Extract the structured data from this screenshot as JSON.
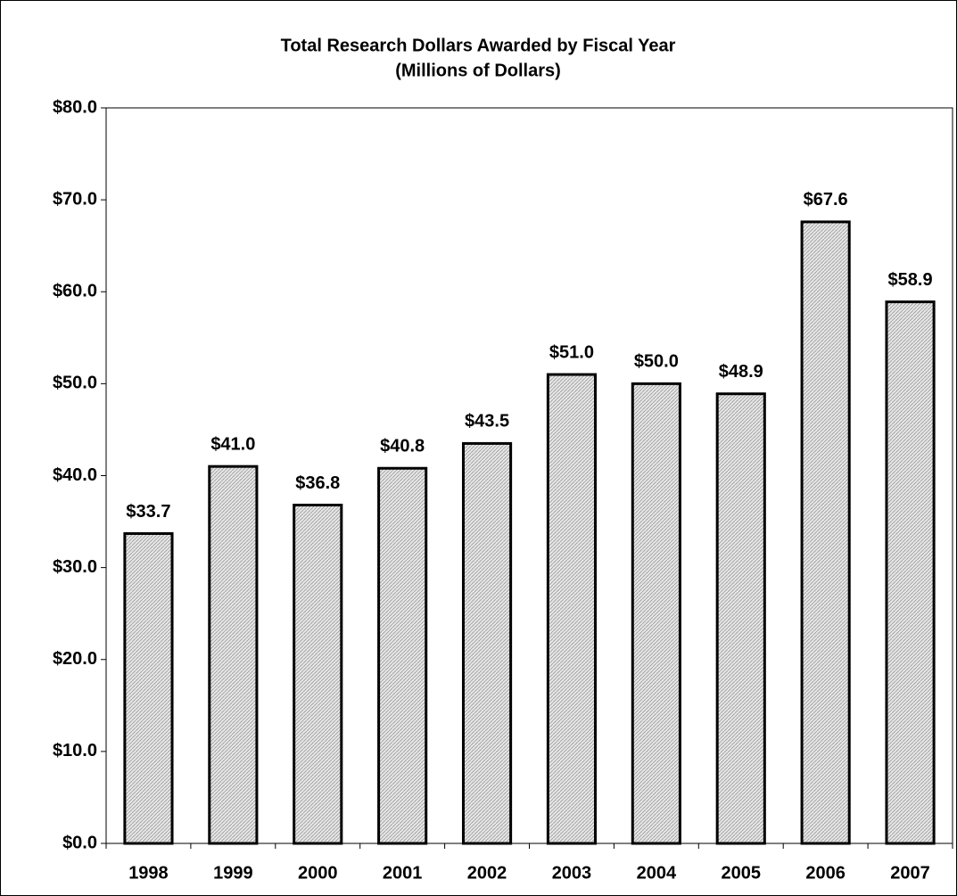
{
  "chart_data": {
    "type": "bar",
    "title": "Total Research Dollars Awarded by Fiscal Year",
    "subtitle": "(Millions of Dollars)",
    "categories": [
      "1998",
      "1999",
      "2000",
      "2001",
      "2002",
      "2003",
      "2004",
      "2005",
      "2006",
      "2007"
    ],
    "values": [
      33.7,
      41.0,
      36.8,
      40.8,
      43.5,
      51.0,
      50.0,
      48.9,
      67.6,
      58.9
    ],
    "value_labels": [
      "$33.7",
      "$41.0",
      "$36.8",
      "$40.8",
      "$43.5",
      "$51.0",
      "$50.0",
      "$48.9",
      "$67.6",
      "$58.9"
    ],
    "color": "#d4d4d4",
    "ylim": [
      0,
      80
    ],
    "yticks": [
      {
        "value": 0,
        "label": "$0.0"
      },
      {
        "value": 10,
        "label": "$10.0"
      },
      {
        "value": 20,
        "label": "$20.0"
      },
      {
        "value": 30,
        "label": "$30.0"
      },
      {
        "value": 40,
        "label": "$40.0"
      },
      {
        "value": 50,
        "label": "$50.0"
      },
      {
        "value": 60,
        "label": "$60.0"
      },
      {
        "value": 70,
        "label": "$70.0"
      },
      {
        "value": 80,
        "label": "$80.0"
      }
    ],
    "grid": false
  }
}
